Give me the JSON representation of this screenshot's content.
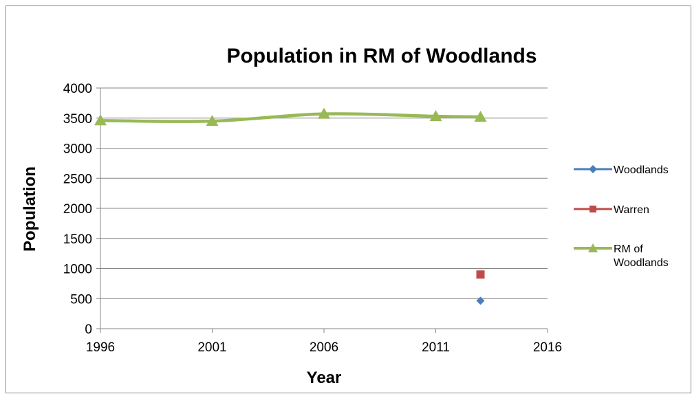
{
  "chart_data": {
    "type": "scatter",
    "title": "Population in RM of Woodlands",
    "xlabel": "Year",
    "ylabel": "Population",
    "xlim": [
      1996,
      2016
    ],
    "ylim": [
      0,
      4000
    ],
    "x_ticks": [
      1996,
      2001,
      2006,
      2011,
      2016
    ],
    "y_ticks": [
      0,
      500,
      1000,
      1500,
      2000,
      2500,
      3000,
      3500,
      4000
    ],
    "grid": true,
    "legend_position": "right",
    "series": [
      {
        "name": "Woodlands",
        "color": "#4a7ebb",
        "marker": "diamond",
        "x": [
          2013
        ],
        "y": [
          465
        ]
      },
      {
        "name": "Warren",
        "color": "#be4b48",
        "marker": "square",
        "x": [
          2013
        ],
        "y": [
          900
        ]
      },
      {
        "name": "RM of Woodlands",
        "color": "#98b954",
        "marker": "triangle",
        "x": [
          1996,
          2001,
          2006,
          2011,
          2013
        ],
        "y": [
          3460,
          3450,
          3570,
          3530,
          3520
        ]
      }
    ]
  },
  "legend": {
    "woodlands": "Woodlands",
    "warren": "Warren",
    "rm_line1": "RM of",
    "rm_line2": "Woodlands"
  }
}
